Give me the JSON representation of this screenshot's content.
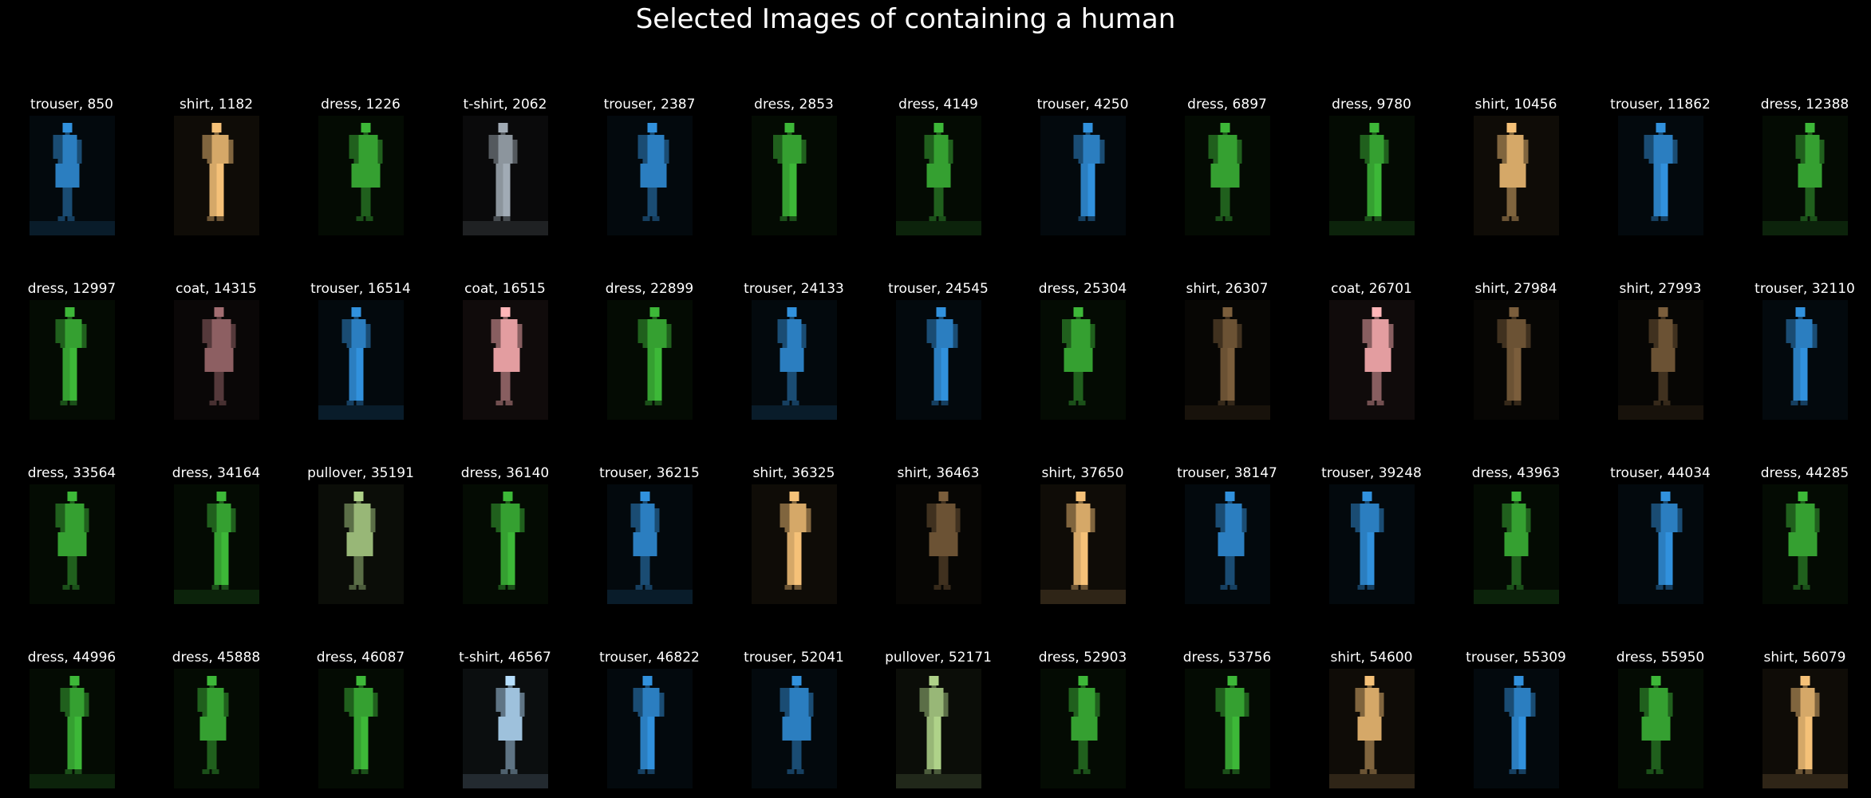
{
  "title": "Selected Images of containing a human",
  "colors": {
    "background": "#000000",
    "text": "#ffffff",
    "blue": "#2b7ec0",
    "green": "#35a031",
    "tan": "#d5a868",
    "brown": "#6b5234",
    "pink": "#e39da0",
    "mauve": "#8d5f62",
    "grey": "#8c959d",
    "lightblue": "#9ec1dc",
    "olive": "#98b777"
  },
  "images": [
    {
      "label": "trouser, 850",
      "palette": "blue"
    },
    {
      "label": "shirt, 1182",
      "palette": "tan"
    },
    {
      "label": "dress, 1226",
      "palette": "green"
    },
    {
      "label": "t-shirt, 2062",
      "palette": "grey"
    },
    {
      "label": "trouser, 2387",
      "palette": "blue"
    },
    {
      "label": "dress, 2853",
      "palette": "green"
    },
    {
      "label": "dress, 4149",
      "palette": "green"
    },
    {
      "label": "trouser, 4250",
      "palette": "blue"
    },
    {
      "label": "dress, 6897",
      "palette": "green"
    },
    {
      "label": "dress, 9780",
      "palette": "green"
    },
    {
      "label": "shirt, 10456",
      "palette": "tan"
    },
    {
      "label": "trouser, 11862",
      "palette": "blue"
    },
    {
      "label": "dress, 12388",
      "palette": "green"
    },
    {
      "label": "dress, 12997",
      "palette": "green"
    },
    {
      "label": "coat, 14315",
      "palette": "mauve"
    },
    {
      "label": "trouser, 16514",
      "palette": "blue"
    },
    {
      "label": "coat, 16515",
      "palette": "pink"
    },
    {
      "label": "dress, 22899",
      "palette": "green"
    },
    {
      "label": "trouser, 24133",
      "palette": "blue"
    },
    {
      "label": "trouser, 24545",
      "palette": "blue"
    },
    {
      "label": "dress, 25304",
      "palette": "green"
    },
    {
      "label": "shirt, 26307",
      "palette": "brown"
    },
    {
      "label": "coat, 26701",
      "palette": "pink"
    },
    {
      "label": "shirt, 27984",
      "palette": "brown"
    },
    {
      "label": "shirt, 27993",
      "palette": "brown"
    },
    {
      "label": "trouser, 32110",
      "palette": "blue"
    },
    {
      "label": "dress, 33564",
      "palette": "green"
    },
    {
      "label": "dress, 34164",
      "palette": "green"
    },
    {
      "label": "pullover, 35191",
      "palette": "olive"
    },
    {
      "label": "dress, 36140",
      "palette": "green"
    },
    {
      "label": "trouser, 36215",
      "palette": "blue"
    },
    {
      "label": "shirt, 36325",
      "palette": "tan"
    },
    {
      "label": "shirt, 36463",
      "palette": "brown"
    },
    {
      "label": "shirt, 37650",
      "palette": "tan"
    },
    {
      "label": "trouser, 38147",
      "palette": "blue"
    },
    {
      "label": "trouser, 39248",
      "palette": "blue"
    },
    {
      "label": "dress, 43963",
      "palette": "green"
    },
    {
      "label": "trouser, 44034",
      "palette": "blue"
    },
    {
      "label": "dress, 44285",
      "palette": "green"
    },
    {
      "label": "dress, 44996",
      "palette": "green"
    },
    {
      "label": "dress, 45888",
      "palette": "green"
    },
    {
      "label": "dress, 46087",
      "palette": "green"
    },
    {
      "label": "t-shirt, 46567",
      "palette": "lightblue"
    },
    {
      "label": "trouser, 46822",
      "palette": "blue"
    },
    {
      "label": "trouser, 52041",
      "palette": "blue"
    },
    {
      "label": "pullover, 52171",
      "palette": "olive"
    },
    {
      "label": "dress, 52903",
      "palette": "green"
    },
    {
      "label": "dress, 53756",
      "palette": "green"
    },
    {
      "label": "shirt, 54600",
      "palette": "tan"
    },
    {
      "label": "trouser, 55309",
      "palette": "blue"
    },
    {
      "label": "dress, 55950",
      "palette": "green"
    },
    {
      "label": "shirt, 56079",
      "palette": "tan"
    }
  ]
}
